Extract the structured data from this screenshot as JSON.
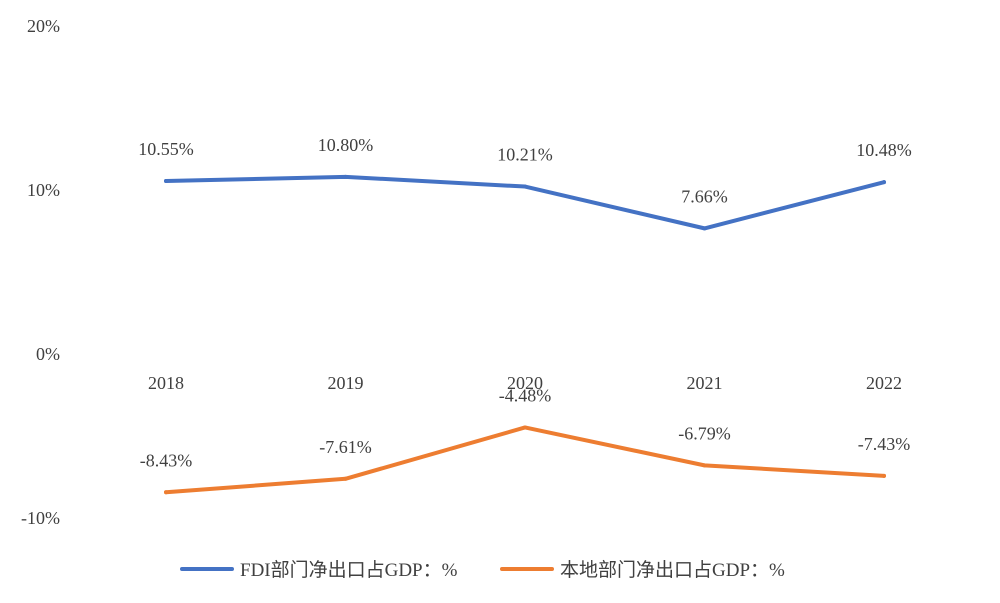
{
  "chart_data": {
    "type": "line",
    "categories": [
      "2018",
      "2019",
      "2020",
      "2021",
      "2022"
    ],
    "ylim": [
      -10,
      20
    ],
    "yticks": [
      20,
      10,
      0,
      -10
    ],
    "ytick_labels": [
      "20%",
      "10%",
      "0%",
      "-10%"
    ],
    "grid": false,
    "legend_position": "bottom",
    "series": [
      {
        "name": "FDI部门净出口占GDP：%",
        "values": [
          10.55,
          10.8,
          10.21,
          7.66,
          10.48
        ],
        "labels": [
          "10.55%",
          "10.80%",
          "10.21%",
          "7.66%",
          "10.48%"
        ],
        "color": "#4472C4"
      },
      {
        "name": "本地部门净出口占GDP：%",
        "values": [
          -8.43,
          -7.61,
          -4.48,
          -6.79,
          -7.43
        ],
        "labels": [
          "-8.43%",
          "-7.61%",
          "-4.48%",
          "-6.79%",
          "-7.43%"
        ],
        "color": "#ED7D31"
      }
    ]
  }
}
